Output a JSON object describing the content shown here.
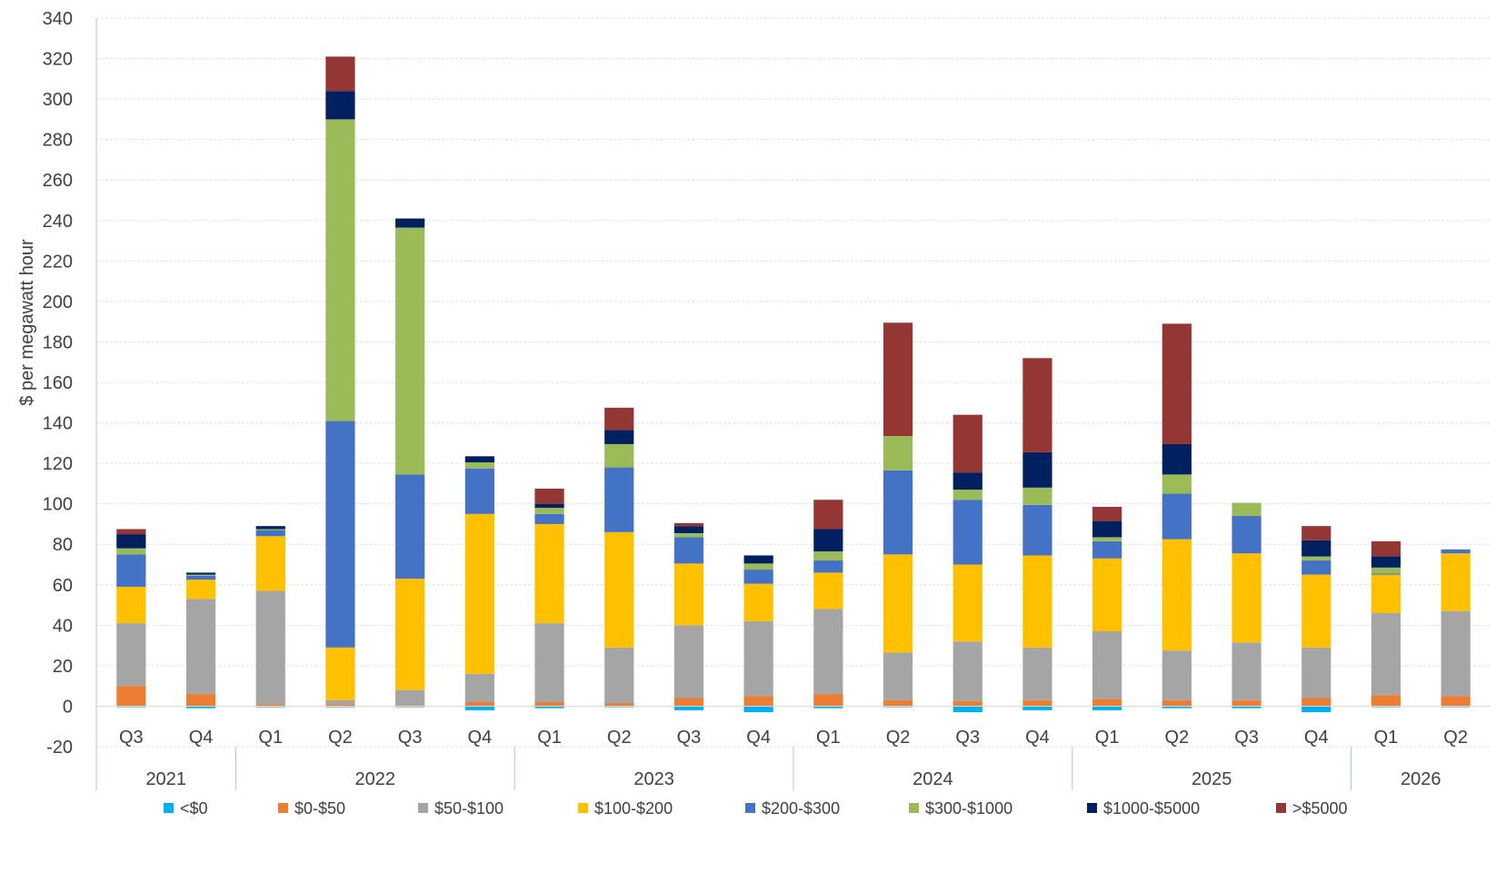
{
  "chart_data": {
    "type": "bar",
    "stacked": true,
    "title": "",
    "ylabel": "$ per megawatt hour",
    "ylim": [
      -20,
      340
    ],
    "ytick_step": 20,
    "grid": true,
    "legend_position": "bottom",
    "quarters": [
      "Q3",
      "Q4",
      "Q1",
      "Q2",
      "Q3",
      "Q4",
      "Q1",
      "Q2",
      "Q3",
      "Q4",
      "Q1",
      "Q2",
      "Q3",
      "Q4",
      "Q1",
      "Q2",
      "Q3",
      "Q4",
      "Q1",
      "Q2"
    ],
    "years": [
      {
        "label": "2021",
        "count": 2
      },
      {
        "label": "2022",
        "count": 4
      },
      {
        "label": "2023",
        "count": 4
      },
      {
        "label": "2024",
        "count": 4
      },
      {
        "label": "2025",
        "count": 4
      },
      {
        "label": "2026",
        "count": 2
      }
    ],
    "series": [
      {
        "name": "<$0",
        "color": "#00B0F0",
        "values": [
          -0.5,
          -1,
          -0.5,
          -0.5,
          -0.5,
          -2,
          -1,
          -0.5,
          -2,
          -3,
          -1,
          -0.5,
          -3,
          -2,
          -2,
          -1,
          -1,
          -3,
          -0.5,
          -0.5
        ]
      },
      {
        "name": "$0-$50",
        "color": "#ED7D31",
        "values": [
          10,
          6,
          1,
          1,
          0.5,
          2,
          2,
          1.5,
          4,
          5,
          6,
          3,
          2.5,
          3,
          3.5,
          3,
          3,
          4,
          5.5,
          5
        ]
      },
      {
        "name": "$50-$100",
        "color": "#A5A5A5",
        "values": [
          31,
          47,
          56,
          2,
          7.5,
          14,
          39,
          27.5,
          36,
          37,
          42,
          23.5,
          29.5,
          26,
          33.5,
          24.5,
          28.5,
          25,
          40.5,
          42
        ]
      },
      {
        "name": "$100-$200",
        "color": "#FFC000",
        "values": [
          18,
          9.5,
          27,
          26,
          55,
          79,
          49,
          57,
          30.5,
          18.5,
          18,
          48.5,
          38,
          45.5,
          36,
          55,
          44,
          36,
          19,
          28.5
        ]
      },
      {
        "name": "$200-$300",
        "color": "#4472C4",
        "values": [
          16,
          2,
          3,
          112,
          51.5,
          22.5,
          5,
          32,
          13,
          7,
          6,
          41.5,
          32,
          25,
          8.5,
          22.5,
          18.5,
          7,
          0.5,
          2
        ]
      },
      {
        "name": "$300-$1000",
        "color": "#9BBB59",
        "values": [
          3,
          0.5,
          0.5,
          149,
          122,
          3,
          3,
          11.5,
          2,
          3,
          4.5,
          17,
          5,
          8.5,
          2,
          9.5,
          6.5,
          2,
          3,
          0
        ]
      },
      {
        "name": "$1000-$5000",
        "color": "#002060",
        "values": [
          7,
          1,
          1.5,
          14,
          4.5,
          3,
          2,
          7,
          3.5,
          4,
          11,
          0,
          8.5,
          17.5,
          8,
          15,
          0,
          8,
          5.5,
          0
        ]
      },
      {
        "name": ">$5000",
        "color": "#943634",
        "values": [
          2.5,
          0,
          0,
          17,
          0,
          0,
          7.5,
          11,
          1.5,
          0,
          14.5,
          56,
          28.5,
          46.5,
          7,
          59.5,
          0,
          7,
          7.5,
          0
        ]
      }
    ]
  }
}
